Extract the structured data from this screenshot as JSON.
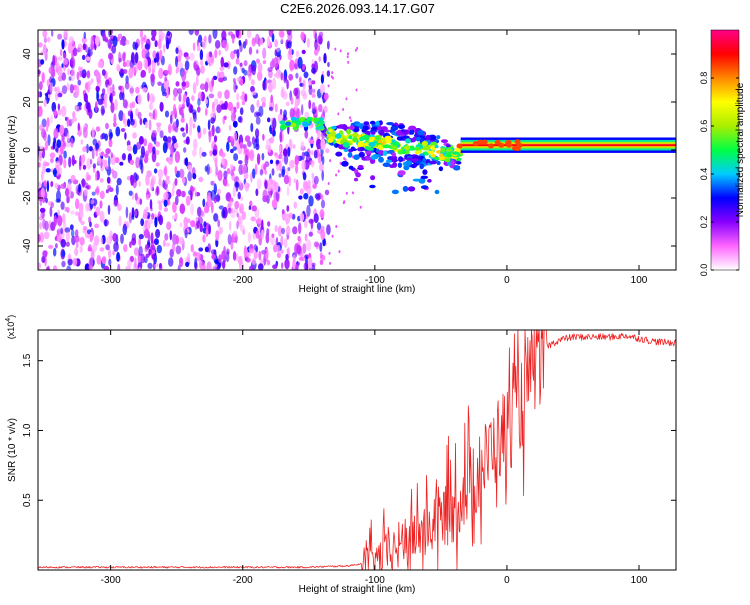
{
  "title": "C2E6.2026.093.14.17.G07",
  "chart_data": [
    {
      "type": "heatmap",
      "name": "spectrogram",
      "xlabel": "Height of straight line (km)",
      "ylabel": "Frequency (Hz)",
      "xlim": [
        -355,
        128
      ],
      "ylim": [
        -50,
        50
      ],
      "xticks": [
        -300,
        -200,
        -100,
        0,
        100
      ],
      "yticks": [
        -40,
        -20,
        0,
        20,
        40
      ],
      "colorbar": {
        "label": "Normalized spectral amplitude",
        "range": [
          0.0,
          1.0
        ],
        "ticks": [
          0.0,
          0.2,
          0.4,
          0.6,
          0.8
        ],
        "colormap": [
          "#ffffff",
          "#ff66ff",
          "#8800ff",
          "#0000ff",
          "#00ccff",
          "#00ff44",
          "#aaee00",
          "#ffff00",
          "#ff8800",
          "#ff0000",
          "#ff0088"
        ]
      },
      "features": [
        {
          "name": "broadband-noise",
          "x_range": [
            -355,
            -135
          ],
          "f_range": [
            -50,
            50
          ],
          "amplitude": 0.25
        },
        {
          "name": "signal-onset",
          "x_range": [
            -170,
            -140
          ],
          "f_center": 11,
          "amplitude": 0.5
        },
        {
          "name": "dispersed-tail",
          "x_range": [
            -135,
            -35
          ],
          "f_center": [
            6,
            -2
          ],
          "amplitude": 0.6
        },
        {
          "name": "carrier-line",
          "x_range": [
            -35,
            128
          ],
          "f_center": 2,
          "amplitude": 0.9
        }
      ]
    },
    {
      "type": "line",
      "name": "snr",
      "xlabel": "Height of straight line (km)",
      "ylabel": "SNR (10 * v/v)",
      "scale_label": "(x10",
      "scale_exp": "4",
      "xlim": [
        -355,
        128
      ],
      "ylim": [
        0,
        1.72
      ],
      "xticks": [
        -300,
        -200,
        -100,
        0,
        100
      ],
      "yticks": [
        0.5,
        1.0,
        1.5
      ],
      "ytick_labels": [
        "0.5",
        "1.0",
        "1.5"
      ],
      "series": [
        {
          "name": "SNR",
          "color": "#ee2222",
          "x": [
            -355,
            -300,
            -250,
            -200,
            -150,
            -120,
            -100,
            -90,
            -80,
            -70,
            -60,
            -50,
            -40,
            -30,
            -20,
            -10,
            0,
            10,
            20,
            30,
            40,
            50,
            60,
            70,
            80,
            90,
            100,
            110,
            120,
            128
          ],
          "y": [
            0.02,
            0.02,
            0.02,
            0.02,
            0.02,
            0.03,
            0.06,
            0.12,
            0.18,
            0.25,
            0.3,
            0.38,
            0.45,
            0.6,
            0.7,
            0.9,
            1.0,
            1.2,
            1.45,
            1.6,
            1.65,
            1.67,
            1.67,
            1.67,
            1.67,
            1.68,
            1.66,
            1.64,
            1.63,
            1.63
          ]
        }
      ]
    }
  ]
}
